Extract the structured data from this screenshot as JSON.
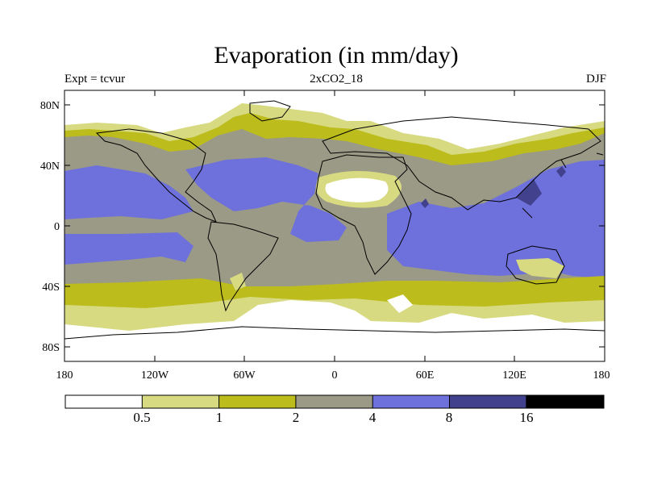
{
  "title": "Evaporation (in mm/day)",
  "header": {
    "left": "Expt = tcvur",
    "center": "2xCO2_18",
    "right": "DJF"
  },
  "lat_labels": [
    "80N",
    "40N",
    "0",
    "40S",
    "80S"
  ],
  "lon_labels": [
    "180",
    "120W",
    "60W",
    "0",
    "60E",
    "120E",
    "180"
  ],
  "colorbar": {
    "labels": [
      "0.5",
      "1",
      "2",
      "4",
      "8",
      "16"
    ],
    "colors": [
      "#ffffff",
      "#d8da82",
      "#bcbc1c",
      "#9a9a86",
      "#6e70dc",
      "#41418e",
      "#000000"
    ]
  }
}
